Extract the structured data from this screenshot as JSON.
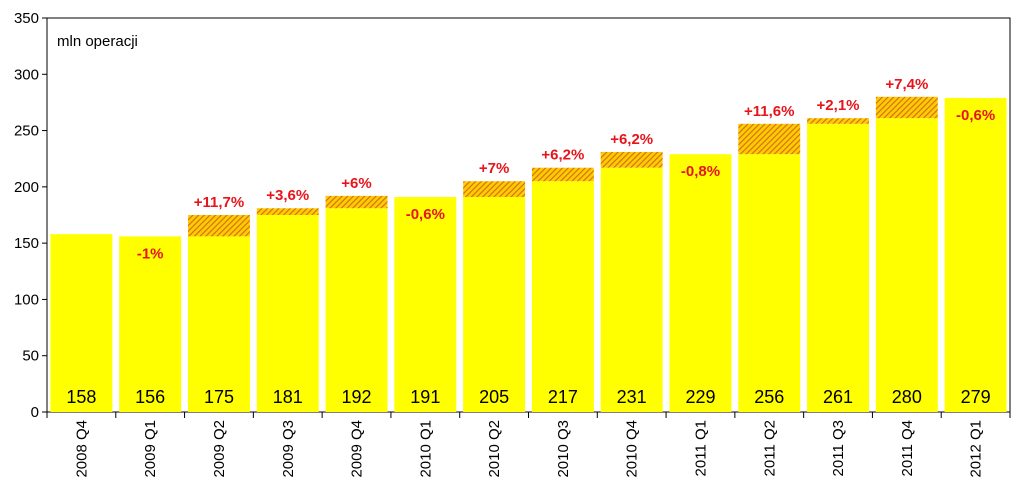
{
  "chart_data": {
    "type": "bar",
    "unit_label": "mln operacji",
    "categories": [
      "2008 Q4",
      "2009 Q1",
      "2009 Q2",
      "2009 Q3",
      "2009 Q4",
      "2010 Q1",
      "2010 Q2",
      "2010 Q3",
      "2010 Q4",
      "2011 Q1",
      "2011 Q2",
      "2011 Q3",
      "2011 Q4",
      "2012 Q1"
    ],
    "values": [
      158,
      156,
      175,
      181,
      192,
      191,
      205,
      217,
      231,
      229,
      256,
      261,
      280,
      279
    ],
    "value_labels": [
      "158",
      "156",
      "175",
      "181",
      "192",
      "191",
      "205",
      "217",
      "231",
      "229",
      "256",
      "261",
      "280",
      "279"
    ],
    "change_labels": [
      "",
      "-1%",
      "+11,7%",
      "+3,6%",
      "+6%",
      "-0,6%",
      "+7%",
      "+6,2%",
      "+6,2%",
      "-0,8%",
      "+11,6%",
      "+2,1%",
      "+7,4%",
      "-0,6%"
    ],
    "ylim": [
      0,
      350
    ],
    "yticks": [
      0,
      50,
      100,
      150,
      200,
      250,
      300,
      350
    ],
    "grid": false,
    "colors": {
      "bar": "#ffff00",
      "increase_hatch": "#d2691e",
      "increase_bg": "#ffd700",
      "change_text": "#e8141b"
    }
  }
}
